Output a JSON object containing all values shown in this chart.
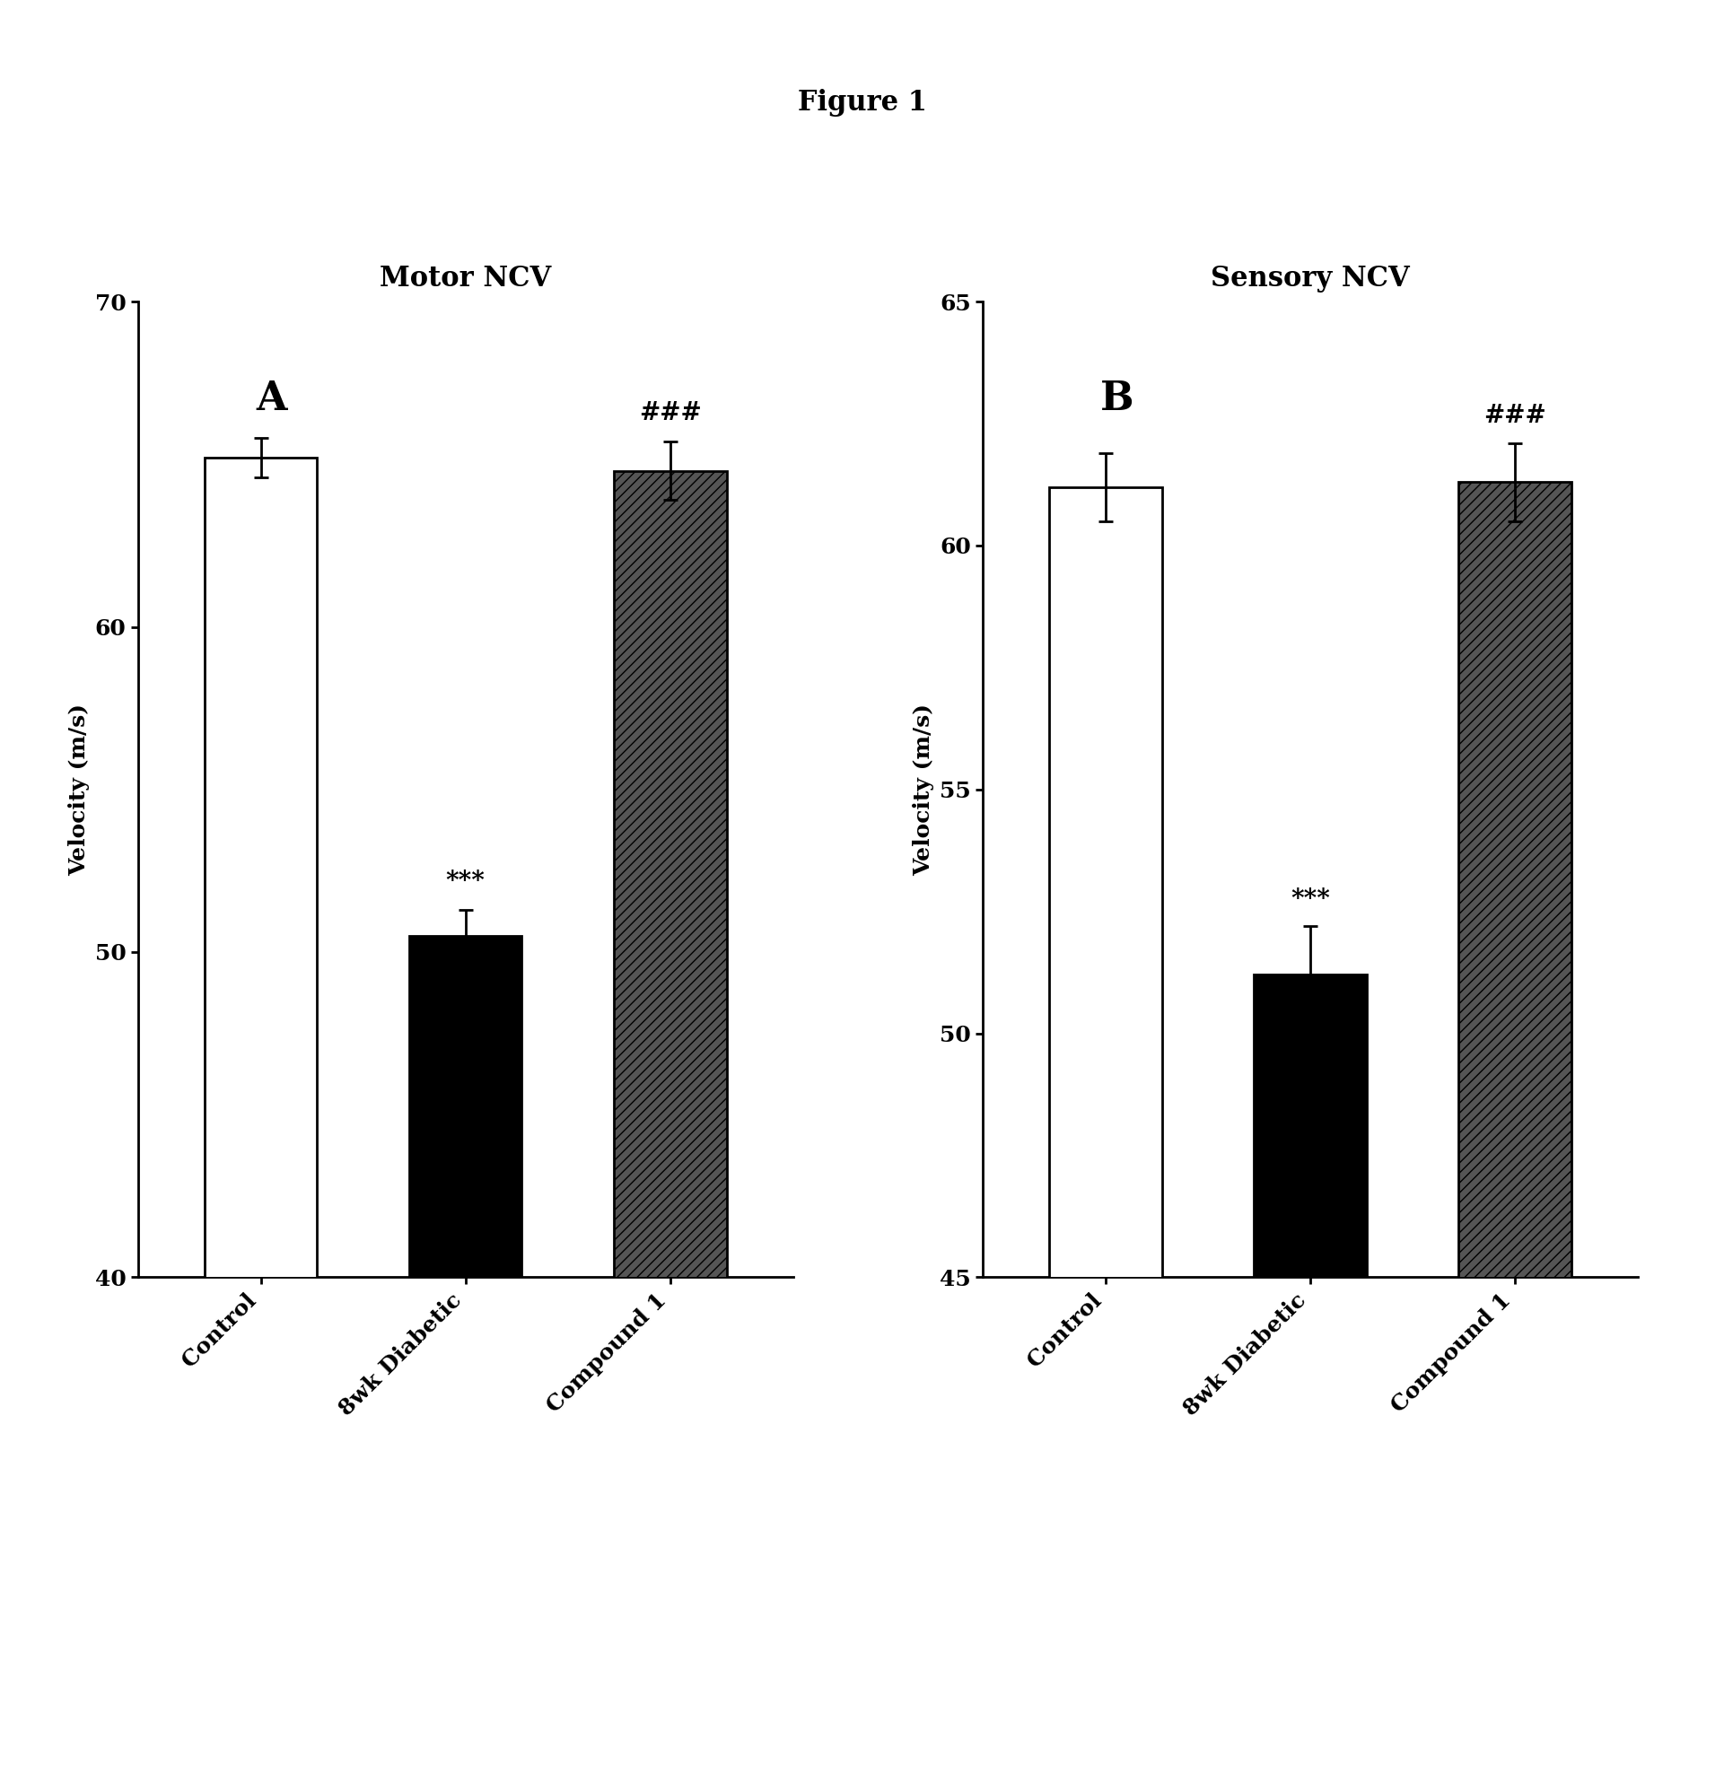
{
  "figure_title": "Figure 1",
  "subplot_A_title": "Motor NCV",
  "subplot_B_title": "Sensory NCV",
  "ylabel": "Velocity (m/s)",
  "categories": [
    "Control",
    "8wk Diabetic",
    "Compound 1"
  ],
  "motor_values": [
    65.2,
    50.5,
    64.8
  ],
  "motor_errors": [
    0.6,
    0.8,
    0.9
  ],
  "sensory_values": [
    61.2,
    51.2,
    61.3
  ],
  "sensory_errors": [
    0.7,
    1.0,
    0.8
  ],
  "motor_ylim": [
    40,
    70
  ],
  "motor_yticks": [
    40,
    50,
    60,
    70
  ],
  "sensory_ylim": [
    45,
    65
  ],
  "sensory_yticks": [
    45,
    50,
    55,
    60,
    65
  ],
  "bar_colors": [
    "#ffffff",
    "#000000",
    "#404040"
  ],
  "bar_edgecolor": "#000000",
  "bar_width": 0.55,
  "panel_A_label": "A",
  "panel_B_label": "B",
  "sig_labels_A": [
    "",
    "***",
    "###"
  ],
  "sig_labels_B": [
    "",
    "***",
    "###"
  ],
  "background_color": "#ffffff",
  "title_fontsize": 22,
  "axis_title_fontsize": 22,
  "tick_fontsize": 18,
  "label_fontsize": 18,
  "panel_label_fontsize": 32,
  "sig_fontsize": 20,
  "figure_title_fontsize": 22
}
